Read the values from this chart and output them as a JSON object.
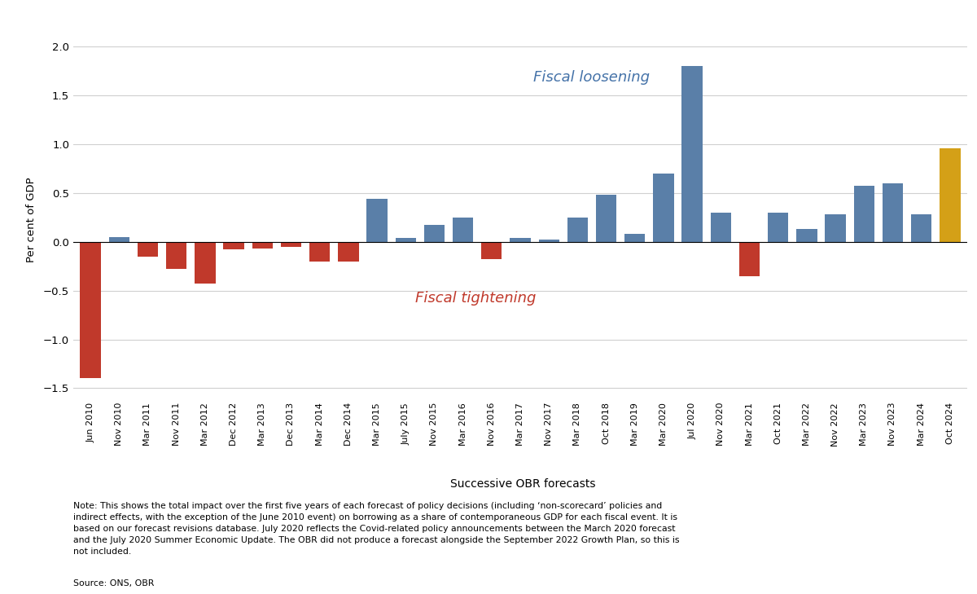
{
  "categories": [
    "Jun 2010",
    "Nov 2010",
    "Mar 2011",
    "Nov 2011",
    "Mar 2012",
    "Dec 2012",
    "Mar 2013",
    "Dec 2013",
    "Mar 2014",
    "Dec 2014",
    "Mar 2015",
    "July 2015",
    "Nov 2015",
    "Mar 2016",
    "Nov 2016",
    "Mar 2017",
    "Nov 2017",
    "Mar 2018",
    "Oct 2018",
    "Mar 2019",
    "Mar 2020",
    "Jul 2020",
    "Nov 2020",
    "Mar 2021",
    "Oct 2021",
    "Mar 2022",
    "Nov 2022",
    "Mar 2023",
    "Nov 2023",
    "Mar 2024",
    "Oct 2024"
  ],
  "values": [
    -1.4,
    0.05,
    -0.15,
    -0.28,
    -0.43,
    -0.08,
    -0.07,
    -0.05,
    -0.2,
    -0.2,
    0.44,
    0.04,
    0.17,
    0.25,
    -0.18,
    0.04,
    0.02,
    0.25,
    0.48,
    0.08,
    0.7,
    1.8,
    0.3,
    -0.35,
    0.3,
    0.13,
    0.28,
    0.57,
    0.6,
    0.28,
    0.96
  ],
  "bar_colors_positive": "#5a7fa8",
  "bar_colors_negative": "#c0392b",
  "bar_color_last": "#d4a017",
  "ylabel": "Per cent of GDP",
  "xlabel": "Successive OBR forecasts",
  "ylim": [
    -1.6,
    2.05
  ],
  "yticks": [
    -1.5,
    -1.0,
    -0.5,
    0.0,
    0.5,
    1.0,
    1.5,
    2.0
  ],
  "annotation_loosening": "Fiscal loosening",
  "annotation_tightening": "Fiscal tightening",
  "annotation_loosening_color": "#4472a8",
  "annotation_tightening_color": "#c0392b",
  "note_text": "Note: This shows the total impact over the first five years of each forecast of policy decisions (including ‘non-scorecard’ policies and\nindirect effects, with the exception of the June 2010 event) on borrowing as a share of contemporaneous GDP for each fiscal event. It is\nbased on our forecast revisions database. July 2020 reflects the Covid-related policy announcements between the March 2020 forecast\nand the July 2020 Summer Economic Update. The OBR did not produce a forecast alongside the September 2022 Growth Plan, so this is\nnot included.",
  "source_text": "Source: ONS, OBR",
  "background_color": "#ffffff",
  "grid_color": "#d0d0d0"
}
